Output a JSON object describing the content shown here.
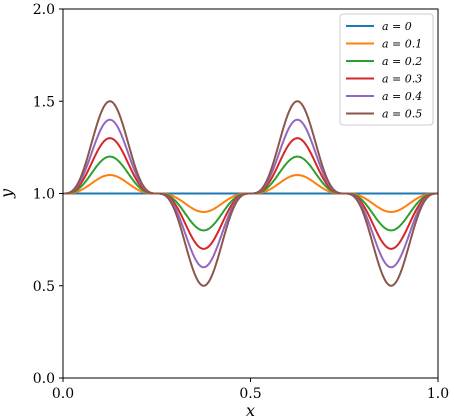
{
  "chart_data": {
    "type": "line",
    "xlabel": "x",
    "ylabel": "y",
    "xlim": [
      0.0,
      1.0
    ],
    "ylim": [
      0.0,
      2.0
    ],
    "x_ticks": [
      "0.0",
      "0.5",
      "1.0"
    ],
    "y_ticks": [
      "0.0",
      "0.5",
      "1.0",
      "1.5",
      "2.0"
    ],
    "x_tick_values": [
      0.0,
      0.5,
      1.0
    ],
    "y_tick_values": [
      0.0,
      0.5,
      1.0,
      1.5,
      2.0
    ],
    "grid": false,
    "legend_position": "top-right",
    "function": "y = 1 + a·sin(4πx)^3 (smooth periodic bumps)",
    "series": [
      {
        "name": "a = 0",
        "a": 0.0,
        "color": "#1f77b4"
      },
      {
        "name": "a = 0.1",
        "a": 0.1,
        "color": "#ff7f0e"
      },
      {
        "name": "a = 0.2",
        "a": 0.2,
        "color": "#2ca02c"
      },
      {
        "name": "a = 0.3",
        "a": 0.3,
        "color": "#d62728"
      },
      {
        "name": "a = 0.4",
        "a": 0.4,
        "color": "#9467bd"
      },
      {
        "name": "a = 0.5",
        "a": 0.5,
        "color": "#8c564b"
      }
    ]
  }
}
